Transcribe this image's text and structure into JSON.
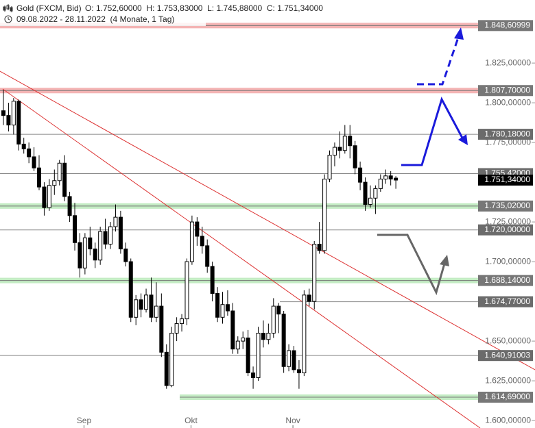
{
  "chart_data": {
    "type": "candlestick",
    "title": "Gold (FXCM, Bid)",
    "info": "O: 1.752,60000  H: 1.753,83000  L: 1.745,88000  C: 1.751,34000",
    "subtitle": "09.08.2022 - 28.11.2022  (4 Monate, 1 Tag)",
    "categories": [
      null,
      null,
      null,
      null,
      null,
      null,
      null,
      null,
      null,
      null,
      null,
      null,
      null,
      null,
      null,
      "Sep",
      null,
      null,
      null,
      null,
      null,
      null,
      null,
      null,
      null,
      null,
      null,
      null,
      null,
      null,
      null,
      null,
      null,
      null,
      null,
      null,
      "Okt",
      null,
      null,
      null,
      null,
      null,
      null,
      null,
      null,
      null,
      null,
      null,
      null,
      null,
      null,
      null,
      null,
      null,
      null,
      null,
      "Nov",
      null,
      null,
      null,
      null,
      null,
      null,
      null,
      null,
      null,
      null,
      null,
      null,
      null,
      null,
      null,
      null,
      null,
      null,
      null,
      null,
      null
    ],
    "open": [
      1.795,
      1.792,
      1.786,
      1.801,
      1.774,
      1.771,
      1.766,
      1.759,
      1.747,
      1.734,
      1.748,
      1.751,
      1.762,
      1.741,
      1.729,
      1.712,
      1.696,
      1.715,
      1.708,
      1.701,
      1.719,
      1.711,
      1.722,
      1.728,
      1.708,
      1.7,
      1.665,
      1.676,
      1.67,
      1.679,
      1.665,
      1.672,
      1.643,
      1.622,
      1.655,
      1.661,
      1.664,
      1.7,
      1.725,
      1.716,
      1.71,
      1.697,
      1.68,
      1.665,
      1.673,
      1.669,
      1.645,
      1.65,
      1.652,
      1.63,
      1.627,
      1.655,
      1.651,
      1.655,
      1.672,
      1.667,
      1.634,
      1.644,
      1.632,
      1.63,
      1.679,
      1.675,
      1.711,
      1.707,
      1.752,
      1.767,
      1.772,
      1.77,
      1.779,
      1.773,
      1.759,
      1.75,
      1.736,
      1.74,
      1.746,
      1.752,
      1.754,
      1.7526
    ],
    "high": [
      1.808,
      1.8,
      1.803,
      1.802,
      1.778,
      1.775,
      1.772,
      1.767,
      1.75,
      1.752,
      1.758,
      1.764,
      1.767,
      1.744,
      1.737,
      1.718,
      1.718,
      1.722,
      1.712,
      1.722,
      1.727,
      1.725,
      1.736,
      1.732,
      1.712,
      1.702,
      1.679,
      1.68,
      1.683,
      1.69,
      1.687,
      1.68,
      1.648,
      1.659,
      1.665,
      1.667,
      1.702,
      1.729,
      1.728,
      1.722,
      1.714,
      1.7,
      1.684,
      1.681,
      1.682,
      1.674,
      1.653,
      1.656,
      1.657,
      1.634,
      1.659,
      1.663,
      1.661,
      1.677,
      1.674,
      1.669,
      1.648,
      1.647,
      1.638,
      1.682,
      1.683,
      1.713,
      1.725,
      1.755,
      1.77,
      1.775,
      1.782,
      1.786,
      1.786,
      1.776,
      1.763,
      1.753,
      1.748,
      1.748,
      1.755,
      1.758,
      1.757,
      1.75383
    ],
    "low": [
      1.786,
      1.782,
      1.78,
      1.77,
      1.768,
      1.762,
      1.757,
      1.745,
      1.729,
      1.732,
      1.742,
      1.748,
      1.738,
      1.725,
      1.707,
      1.69,
      1.692,
      1.704,
      1.696,
      1.698,
      1.708,
      1.708,
      1.719,
      1.705,
      1.697,
      1.662,
      1.66,
      1.665,
      1.668,
      1.662,
      1.662,
      1.64,
      1.62,
      1.621,
      1.65,
      1.656,
      1.66,
      1.698,
      1.71,
      1.705,
      1.693,
      1.675,
      1.662,
      1.661,
      1.666,
      1.642,
      1.642,
      1.645,
      1.628,
      1.62,
      1.625,
      1.646,
      1.648,
      1.652,
      1.655,
      1.63,
      1.631,
      1.63,
      1.62,
      1.628,
      1.672,
      1.67,
      1.705,
      1.705,
      1.75,
      1.76,
      1.765,
      1.768,
      1.765,
      1.755,
      1.745,
      1.732,
      1.734,
      1.73,
      1.744,
      1.749,
      1.748,
      1.74588
    ],
    "close": [
      1.792,
      1.786,
      1.801,
      1.774,
      1.771,
      1.766,
      1.759,
      1.747,
      1.734,
      1.748,
      1.751,
      1.762,
      1.741,
      1.729,
      1.712,
      1.696,
      1.715,
      1.708,
      1.701,
      1.719,
      1.711,
      1.722,
      1.728,
      1.708,
      1.7,
      1.665,
      1.676,
      1.67,
      1.679,
      1.665,
      1.672,
      1.643,
      1.622,
      1.655,
      1.661,
      1.664,
      1.7,
      1.725,
      1.716,
      1.71,
      1.697,
      1.68,
      1.665,
      1.673,
      1.669,
      1.645,
      1.65,
      1.652,
      1.63,
      1.627,
      1.655,
      1.651,
      1.655,
      1.672,
      1.667,
      1.634,
      1.644,
      1.632,
      1.63,
      1.679,
      1.675,
      1.711,
      1.707,
      1.752,
      1.767,
      1.772,
      1.77,
      1.779,
      1.773,
      1.759,
      1.75,
      1.736,
      1.74,
      1.746,
      1.752,
      1.754,
      1.752,
      1.75134
    ],
    "ylim": [
      1.5953,
      1.8647
    ],
    "yticks": [
      {
        "value": 1.6,
        "label": "1.600,00000"
      },
      {
        "value": 1.625,
        "label": "1.625,00000"
      },
      {
        "value": 1.65,
        "label": "1.650,00000"
      },
      {
        "value": 1.7,
        "label": "1.700,00000"
      },
      {
        "value": 1.725,
        "label": "1.725,00000"
      },
      {
        "value": 1.775,
        "label": "1.775,00000"
      },
      {
        "value": 1.8,
        "label": "1.800,00000"
      },
      {
        "value": 1.825,
        "label": "1.825,00000"
      }
    ],
    "levels": [
      {
        "value": 1.84860999,
        "label": "1.848,60999",
        "color": "#f4b4b4"
      },
      {
        "value": 1.8077,
        "label": "1.807,70000",
        "color": "#f4b4b4"
      },
      {
        "value": 1.78018,
        "label": "1.780,18000",
        "color": "#888888"
      },
      {
        "value": 1.75542,
        "label": "1.755,42000",
        "color": "#888888"
      },
      {
        "value": 1.73502,
        "label": "1.735,02000",
        "color": "#c4ecc4"
      },
      {
        "value": 1.72,
        "label": "1.720,00000",
        "color": "#888888"
      },
      {
        "value": 1.68814,
        "label": "1.688,14000",
        "color": "#c4ecc4"
      },
      {
        "value": 1.67477,
        "label": "1.674,77000",
        "color": "#888888"
      },
      {
        "value": 1.64091003,
        "label": "1.640,91003",
        "color": "#888888"
      },
      {
        "value": 1.61469,
        "label": "1.614,69000",
        "color": "#c4ecc4"
      }
    ],
    "last_price": {
      "value": 1.75134,
      "label": "1.751,34000",
      "color": "#000000"
    }
  }
}
